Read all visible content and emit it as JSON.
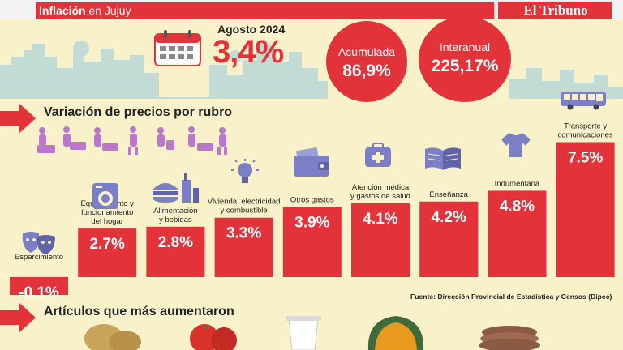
{
  "header": {
    "title_bold": "Inflación",
    "title_rest": " en Jujuy",
    "brand": "El Tribuno"
  },
  "icons": [
    "calendar-icon",
    "theater-masks-icon",
    "washing-machine-icon",
    "fast-food-icon",
    "light-bulb-icon",
    "wallet-icon",
    "medical-kit-icon",
    "open-book-icon",
    "shirt-icon",
    "bus-icon",
    "shoppers-icon",
    "potato-icon",
    "tomato-icon",
    "yogurt-icon",
    "pumpkin-icon",
    "burger-patty-icon"
  ],
  "stats": {
    "month_label": "Agosto 2024",
    "monthly_value": "3,4%",
    "accumulated_label": "Acumulada",
    "accumulated_value": "86,9%",
    "interannual_label": "Interanual",
    "interannual_value": "225,17%"
  },
  "sections": {
    "variation_title": "Variación de precios por rubro",
    "articles_title": "Artículos que más aumentaron"
  },
  "source": "Fuente: Dirección Provincial de Estadística y Censos (Dipec)",
  "colors": {
    "accent": "#e2333b",
    "background": "#f8f1c9",
    "skyline": "#b9d5cf",
    "icon": "#7b7fc6",
    "people": "#b978c9"
  },
  "chart_data": {
    "type": "bar",
    "categories": [
      "Esparcimiento",
      "Equipamiento y funcionamiento del hogar",
      "Alimentación y bebidas",
      "Vivienda, electricidad y combustible",
      "Otros gastos",
      "Atención médica y gastos de salud",
      "Enseñanza",
      "Indumentaria",
      "Transporte y comunicaciones"
    ],
    "values": [
      -0.1,
      2.7,
      2.8,
      3.3,
      3.9,
      4.1,
      4.2,
      4.8,
      7.5
    ],
    "value_labels": [
      "-0.1%",
      "2.7%",
      "2.8%",
      "3.3%",
      "3.9%",
      "4.1%",
      "4.2%",
      "4.8%",
      "7.5%"
    ],
    "category_lines": [
      [
        "Esparcimiento"
      ],
      [
        "Equipamiento y",
        "funcionamiento",
        "del hogar"
      ],
      [
        "Alimentación",
        "y bebidas"
      ],
      [
        "Vivienda, electricidad",
        "y combustible"
      ],
      [
        "Otros gastos"
      ],
      [
        "Atención médica",
        "y gastos de salud"
      ],
      [
        "Enseñanza"
      ],
      [
        "Indumentaria"
      ],
      [
        "Transporte y",
        "comunicaciones"
      ]
    ],
    "grid": false,
    "legend": "none"
  }
}
